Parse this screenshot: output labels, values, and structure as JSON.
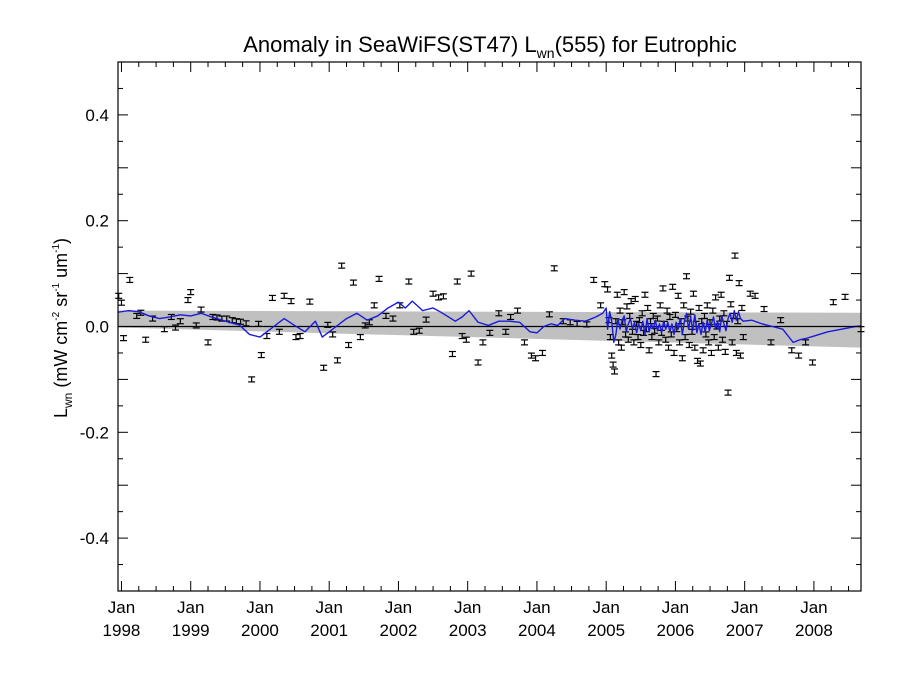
{
  "chart_data": {
    "type": "scatter",
    "title_parts": {
      "prefix": "Anomaly in SeaWiFS(ST47) L",
      "sub": "wn",
      "suffix": "(555) for Eutrophic"
    },
    "ylabel_parts": {
      "L": "L",
      "wn": "wn",
      "open": " (mW cm",
      "exp1": "-2",
      "sr": " sr",
      "exp2": "-1",
      "um": " um",
      "exp3": "-1",
      "close": ")"
    },
    "x_axis": {
      "range": [
        1997.95,
        2008.68
      ],
      "ticks": [
        {
          "year": 1998.0,
          "month": "Jan",
          "label": "1998"
        },
        {
          "year": 1999.0,
          "month": "Jan",
          "label": "1999"
        },
        {
          "year": 2000.0,
          "month": "Jan",
          "label": "2000"
        },
        {
          "year": 2001.0,
          "month": "Jan",
          "label": "2001"
        },
        {
          "year": 2002.0,
          "month": "Jan",
          "label": "2002"
        },
        {
          "year": 2003.0,
          "month": "Jan",
          "label": "2003"
        },
        {
          "year": 2004.0,
          "month": "Jan",
          "label": "2004"
        },
        {
          "year": 2005.0,
          "month": "Jan",
          "label": "2005"
        },
        {
          "year": 2006.0,
          "month": "Jan",
          "label": "2006"
        },
        {
          "year": 2007.0,
          "month": "Jan",
          "label": "2007"
        },
        {
          "year": 2008.0,
          "month": "Jan",
          "label": "2008"
        }
      ]
    },
    "y_axis": {
      "range": [
        -0.5,
        0.5
      ],
      "ticks": [
        -0.4,
        -0.2,
        0.0,
        0.2,
        0.4
      ],
      "tick_labels": [
        "-0.4",
        "-0.2",
        "0.0",
        "0.2",
        "0.4"
      ]
    },
    "colors": {
      "points": "#000000",
      "running_mean": "#1a1adb",
      "band": "#c0c0c0",
      "zero_line": "#000000"
    },
    "uncertainty_band": {
      "upper_start": 0.03,
      "upper_end": 0.026,
      "lower_start": -0.002,
      "lower_end": -0.04
    },
    "points": [
      [
        1997.96,
        0.058
      ],
      [
        1998.0,
        0.045
      ],
      [
        1998.03,
        -0.022
      ],
      [
        1998.12,
        0.088
      ],
      [
        1998.22,
        0.02
      ],
      [
        1998.28,
        0.026
      ],
      [
        1998.35,
        -0.025
      ],
      [
        1998.45,
        0.015
      ],
      [
        1998.62,
        -0.005
      ],
      [
        1998.72,
        0.018
      ],
      [
        1998.78,
        -0.002
      ],
      [
        1998.85,
        0.01
      ],
      [
        1998.96,
        0.05
      ],
      [
        1999.0,
        0.065
      ],
      [
        1999.08,
        0.002
      ],
      [
        1999.15,
        0.032
      ],
      [
        1999.25,
        -0.03
      ],
      [
        1999.32,
        0.018
      ],
      [
        1999.38,
        0.017
      ],
      [
        1999.45,
        0.015
      ],
      [
        1999.52,
        0.015
      ],
      [
        1999.6,
        0.012
      ],
      [
        1999.66,
        0.01
      ],
      [
        1999.72,
        0.009
      ],
      [
        1999.8,
        0.006
      ],
      [
        1999.88,
        -0.1
      ],
      [
        1999.98,
        0.005
      ],
      [
        2000.02,
        -0.054
      ],
      [
        2000.1,
        -0.018
      ],
      [
        2000.18,
        0.054
      ],
      [
        2000.28,
        -0.01
      ],
      [
        2000.35,
        0.058
      ],
      [
        2000.45,
        0.048
      ],
      [
        2000.52,
        -0.02
      ],
      [
        2000.58,
        -0.018
      ],
      [
        2000.72,
        0.047
      ],
      [
        2000.92,
        -0.078
      ],
      [
        2000.98,
        0.003
      ],
      [
        2001.05,
        -0.015
      ],
      [
        2001.12,
        -0.064
      ],
      [
        2001.18,
        0.115
      ],
      [
        2001.28,
        -0.035
      ],
      [
        2001.35,
        0.083
      ],
      [
        2001.45,
        -0.02
      ],
      [
        2001.52,
        0.002
      ],
      [
        2001.58,
        0.008
      ],
      [
        2001.65,
        0.04
      ],
      [
        2001.72,
        0.09
      ],
      [
        2001.82,
        0.02
      ],
      [
        2001.92,
        0.015
      ],
      [
        2002.02,
        0.04
      ],
      [
        2002.15,
        0.085
      ],
      [
        2002.22,
        -0.01
      ],
      [
        2002.3,
        -0.008
      ],
      [
        2002.4,
        0.013
      ],
      [
        2002.5,
        0.062
      ],
      [
        2002.58,
        0.055
      ],
      [
        2002.65,
        0.057
      ],
      [
        2002.78,
        -0.052
      ],
      [
        2002.85,
        0.085
      ],
      [
        2002.92,
        -0.018
      ],
      [
        2002.98,
        -0.025
      ],
      [
        2003.05,
        0.1
      ],
      [
        2003.15,
        -0.068
      ],
      [
        2003.22,
        -0.03
      ],
      [
        2003.32,
        -0.012
      ],
      [
        2003.45,
        0.025
      ],
      [
        2003.55,
        -0.01
      ],
      [
        2003.62,
        0.018
      ],
      [
        2003.72,
        0.03
      ],
      [
        2003.82,
        -0.03
      ],
      [
        2003.92,
        -0.055
      ],
      [
        2003.98,
        -0.06
      ],
      [
        2004.08,
        -0.05
      ],
      [
        2004.18,
        0.023
      ],
      [
        2004.25,
        0.11
      ],
      [
        2004.38,
        0.01
      ],
      [
        2004.48,
        0.008
      ],
      [
        2004.58,
        0.005
      ],
      [
        2004.72,
        0.004
      ],
      [
        2004.82,
        0.088
      ],
      [
        2004.92,
        0.04
      ],
      [
        2004.98,
        0.08
      ],
      [
        2005.02,
        0.07
      ],
      [
        2005.04,
        0.012
      ],
      [
        2005.06,
        -0.02
      ],
      [
        2005.08,
        -0.055
      ],
      [
        2005.1,
        -0.072
      ],
      [
        2005.12,
        -0.085
      ],
      [
        2005.14,
        0.01
      ],
      [
        2005.16,
        0.06
      ],
      [
        2005.18,
        -0.03
      ],
      [
        2005.2,
        0.03
      ],
      [
        2005.22,
        -0.04
      ],
      [
        2005.24,
        0.008
      ],
      [
        2005.26,
        0.065
      ],
      [
        2005.28,
        -0.015
      ],
      [
        2005.3,
        0.038
      ],
      [
        2005.32,
        -0.025
      ],
      [
        2005.34,
        0.02
      ],
      [
        2005.36,
        0.048
      ],
      [
        2005.38,
        -0.01
      ],
      [
        2005.4,
        -0.03
      ],
      [
        2005.42,
        0.052
      ],
      [
        2005.44,
        0.005
      ],
      [
        2005.46,
        -0.02
      ],
      [
        2005.48,
        0.012
      ],
      [
        2005.5,
        -0.035
      ],
      [
        2005.52,
        0.025
      ],
      [
        2005.54,
        -0.012
      ],
      [
        2005.56,
        0.06
      ],
      [
        2005.58,
        -0.005
      ],
      [
        2005.6,
        0.035
      ],
      [
        2005.62,
        -0.045
      ],
      [
        2005.64,
        0.01
      ],
      [
        2005.66,
        -0.02
      ],
      [
        2005.68,
        0.02
      ],
      [
        2005.7,
        -0.008
      ],
      [
        2005.72,
        -0.09
      ],
      [
        2005.74,
        0.015
      ],
      [
        2005.76,
        -0.03
      ],
      [
        2005.78,
        0.04
      ],
      [
        2005.8,
        -0.012
      ],
      [
        2005.82,
        0.072
      ],
      [
        2005.84,
        0.005
      ],
      [
        2005.86,
        -0.025
      ],
      [
        2005.88,
        0.03
      ],
      [
        2005.9,
        -0.04
      ],
      [
        2005.92,
        0.018
      ],
      [
        2005.94,
        -0.015
      ],
      [
        2005.96,
        0.075
      ],
      [
        2005.98,
        -0.05
      ],
      [
        2006.0,
        0.022
      ],
      [
        2006.02,
        -0.005
      ],
      [
        2006.04,
        0.058
      ],
      [
        2006.06,
        -0.03
      ],
      [
        2006.08,
        0.01
      ],
      [
        2006.1,
        -0.06
      ],
      [
        2006.12,
        0.04
      ],
      [
        2006.14,
        -0.02
      ],
      [
        2006.16,
        0.095
      ],
      [
        2006.18,
        0.015
      ],
      [
        2006.2,
        -0.035
      ],
      [
        2006.22,
        0.028
      ],
      [
        2006.24,
        -0.01
      ],
      [
        2006.26,
        0.062
      ],
      [
        2006.28,
        -0.04
      ],
      [
        2006.3,
        0.005
      ],
      [
        2006.32,
        -0.065
      ],
      [
        2006.34,
        0.035
      ],
      [
        2006.36,
        -0.07
      ],
      [
        2006.38,
        0.01
      ],
      [
        2006.4,
        -0.045
      ],
      [
        2006.42,
        0.02
      ],
      [
        2006.44,
        -0.015
      ],
      [
        2006.46,
        0.04
      ],
      [
        2006.48,
        -0.03
      ],
      [
        2006.5,
        0.008
      ],
      [
        2006.52,
        -0.05
      ],
      [
        2006.54,
        0.03
      ],
      [
        2006.56,
        -0.02
      ],
      [
        2006.58,
        0.055
      ],
      [
        2006.6,
        0.0
      ],
      [
        2006.62,
        -0.04
      ],
      [
        2006.64,
        0.015
      ],
      [
        2006.66,
        0.06
      ],
      [
        2006.68,
        -0.025
      ],
      [
        2006.7,
        0.025
      ],
      [
        2006.72,
        -0.048
      ],
      [
        2006.74,
        0.005
      ],
      [
        2006.76,
        -0.125
      ],
      [
        2006.78,
        0.092
      ],
      [
        2006.8,
        0.042
      ],
      [
        2006.82,
        -0.03
      ],
      [
        2006.84,
        0.02
      ],
      [
        2006.86,
        0.134
      ],
      [
        2006.88,
        -0.05
      ],
      [
        2006.9,
        0.01
      ],
      [
        2006.92,
        0.082
      ],
      [
        2006.94,
        -0.055
      ],
      [
        2006.96,
        0.035
      ],
      [
        2006.98,
        -0.02
      ],
      [
        2007.08,
        0.062
      ],
      [
        2007.15,
        0.058
      ],
      [
        2007.28,
        0.033
      ],
      [
        2007.38,
        -0.03
      ],
      [
        2007.52,
        0.012
      ],
      [
        2007.68,
        -0.045
      ],
      [
        2007.78,
        -0.055
      ],
      [
        2007.88,
        -0.03
      ],
      [
        2007.98,
        -0.068
      ],
      [
        2008.28,
        0.046
      ],
      [
        2008.45,
        0.056
      ],
      [
        2008.68,
        -0.005
      ]
    ],
    "running_mean": [
      [
        1997.95,
        0.027
      ],
      [
        1998.1,
        0.03
      ],
      [
        1998.25,
        0.028
      ],
      [
        1998.4,
        0.02
      ],
      [
        1998.55,
        0.015
      ],
      [
        1998.7,
        0.018
      ],
      [
        1998.85,
        0.022
      ],
      [
        1999.0,
        0.02
      ],
      [
        1999.15,
        0.025
      ],
      [
        1999.3,
        0.018
      ],
      [
        1999.5,
        0.01
      ],
      [
        1999.7,
        0.003
      ],
      [
        1999.85,
        -0.015
      ],
      [
        2000.0,
        -0.02
      ],
      [
        2000.1,
        -0.01
      ],
      [
        2000.2,
        0.0
      ],
      [
        2000.35,
        0.015
      ],
      [
        2000.5,
        0.002
      ],
      [
        2000.65,
        -0.01
      ],
      [
        2000.8,
        0.01
      ],
      [
        2000.9,
        -0.02
      ],
      [
        2001.0,
        -0.01
      ],
      [
        2001.1,
        0.0
      ],
      [
        2001.25,
        0.015
      ],
      [
        2001.4,
        0.025
      ],
      [
        2001.55,
        0.012
      ],
      [
        2001.7,
        0.02
      ],
      [
        2001.85,
        0.035
      ],
      [
        2002.0,
        0.046
      ],
      [
        2002.1,
        0.035
      ],
      [
        2002.2,
        0.048
      ],
      [
        2002.35,
        0.03
      ],
      [
        2002.5,
        0.035
      ],
      [
        2002.6,
        0.028
      ],
      [
        2002.7,
        0.02
      ],
      [
        2002.82,
        0.01
      ],
      [
        2002.92,
        0.018
      ],
      [
        2003.02,
        0.03
      ],
      [
        2003.15,
        0.008
      ],
      [
        2003.3,
        0.002
      ],
      [
        2003.45,
        0.01
      ],
      [
        2003.6,
        0.01
      ],
      [
        2003.75,
        0.008
      ],
      [
        2003.9,
        -0.01
      ],
      [
        2004.0,
        -0.012
      ],
      [
        2004.1,
        0.0
      ],
      [
        2004.2,
        0.005
      ],
      [
        2004.3,
        0.002
      ],
      [
        2004.4,
        0.015
      ],
      [
        2004.55,
        0.012
      ],
      [
        2004.7,
        0.01
      ],
      [
        2004.85,
        0.018
      ],
      [
        2004.95,
        0.025
      ],
      [
        2005.0,
        0.035
      ],
      [
        2005.02,
        -0.005
      ],
      [
        2005.05,
        0.028
      ],
      [
        2005.08,
        0.01
      ],
      [
        2005.11,
        -0.03
      ],
      [
        2005.14,
        -0.015
      ],
      [
        2005.17,
        0.015
      ],
      [
        2005.2,
        -0.005
      ],
      [
        2005.23,
        0.012
      ],
      [
        2005.26,
        0.02
      ],
      [
        2005.29,
        -0.01
      ],
      [
        2005.32,
        0.005
      ],
      [
        2005.35,
        0.015
      ],
      [
        2005.38,
        -0.005
      ],
      [
        2005.41,
        0.008
      ],
      [
        2005.44,
        -0.012
      ],
      [
        2005.47,
        0.005
      ],
      [
        2005.5,
        -0.008
      ],
      [
        2005.53,
        0.01
      ],
      [
        2005.56,
        -0.015
      ],
      [
        2005.59,
        0.015
      ],
      [
        2005.62,
        -0.01
      ],
      [
        2005.65,
        0.005
      ],
      [
        2005.68,
        -0.005
      ],
      [
        2005.71,
        0.012
      ],
      [
        2005.74,
        -0.008
      ],
      [
        2005.77,
        0.005
      ],
      [
        2005.8,
        -0.012
      ],
      [
        2005.83,
        0.01
      ],
      [
        2005.86,
        -0.005
      ],
      [
        2005.89,
        0.008
      ],
      [
        2005.92,
        -0.01
      ],
      [
        2005.95,
        0.005
      ],
      [
        2005.98,
        -0.015
      ],
      [
        2006.01,
        0.008
      ],
      [
        2006.04,
        -0.005
      ],
      [
        2006.07,
        0.015
      ],
      [
        2006.1,
        -0.015
      ],
      [
        2006.13,
        0.01
      ],
      [
        2006.16,
        0.025
      ],
      [
        2006.19,
        -0.005
      ],
      [
        2006.22,
        0.018
      ],
      [
        2006.25,
        -0.008
      ],
      [
        2006.28,
        0.022
      ],
      [
        2006.31,
        -0.012
      ],
      [
        2006.34,
        0.005
      ],
      [
        2006.37,
        -0.015
      ],
      [
        2006.4,
        0.008
      ],
      [
        2006.43,
        -0.01
      ],
      [
        2006.46,
        0.012
      ],
      [
        2006.49,
        -0.008
      ],
      [
        2006.52,
        0.005
      ],
      [
        2006.55,
        0.018
      ],
      [
        2006.58,
        -0.005
      ],
      [
        2006.61,
        0.01
      ],
      [
        2006.64,
        -0.01
      ],
      [
        2006.67,
        0.02
      ],
      [
        2006.7,
        0.005
      ],
      [
        2006.73,
        -0.008
      ],
      [
        2006.76,
        0.015
      ],
      [
        2006.79,
        0.025
      ],
      [
        2006.82,
        0.008
      ],
      [
        2006.85,
        0.03
      ],
      [
        2006.88,
        0.012
      ],
      [
        2006.91,
        0.028
      ],
      [
        2006.94,
        0.015
      ],
      [
        2006.98,
        0.01
      ],
      [
        2007.1,
        0.012
      ],
      [
        2007.25,
        0.005
      ],
      [
        2007.4,
        0.0
      ],
      [
        2007.55,
        -0.005
      ],
      [
        2007.7,
        -0.03
      ],
      [
        2007.8,
        -0.025
      ],
      [
        2007.9,
        -0.022
      ],
      [
        2008.0,
        -0.018
      ],
      [
        2008.2,
        -0.01
      ],
      [
        2008.4,
        -0.005
      ],
      [
        2008.6,
        0.0
      ],
      [
        2008.68,
        0.001
      ]
    ]
  }
}
